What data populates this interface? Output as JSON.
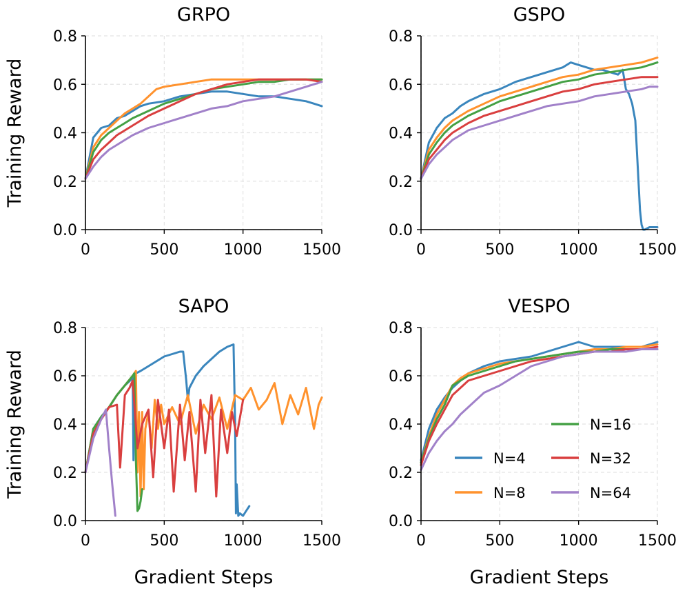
{
  "figure": {
    "xlabel": "Gradient Steps",
    "ylabel": "Training Reward"
  },
  "chart_data": [
    {
      "type": "line",
      "title": "GRPO",
      "xlabel": "",
      "ylabel": "Training Reward",
      "xlim": [
        0,
        1500
      ],
      "ylim": [
        0.0,
        0.8
      ],
      "xticks": [
        "0",
        "500",
        "1000",
        "1500"
      ],
      "yticks": [
        "0.0",
        "0.2",
        "0.4",
        "0.6",
        "0.8"
      ],
      "grid": true,
      "series": [
        {
          "name": "N=4",
          "color": "#3a86bd",
          "x": [
            0,
            50,
            100,
            150,
            200,
            250,
            300,
            350,
            400,
            500,
            600,
            700,
            800,
            900,
            1000,
            1100,
            1200,
            1300,
            1400,
            1450,
            1500
          ],
          "y": [
            0.21,
            0.38,
            0.42,
            0.43,
            0.46,
            0.47,
            0.49,
            0.51,
            0.52,
            0.53,
            0.55,
            0.56,
            0.57,
            0.57,
            0.56,
            0.55,
            0.55,
            0.54,
            0.53,
            0.52,
            0.51
          ]
        },
        {
          "name": "N=8",
          "color": "#ff922d",
          "x": [
            0,
            50,
            100,
            150,
            200,
            250,
            300,
            350,
            400,
            450,
            500,
            600,
            700,
            800,
            900,
            1000,
            1100,
            1200,
            1300,
            1400,
            1500
          ],
          "y": [
            0.21,
            0.34,
            0.39,
            0.42,
            0.45,
            0.48,
            0.5,
            0.52,
            0.55,
            0.58,
            0.59,
            0.6,
            0.61,
            0.62,
            0.62,
            0.62,
            0.62,
            0.62,
            0.62,
            0.62,
            0.62
          ]
        },
        {
          "name": "N=16",
          "color": "#44a044",
          "x": [
            0,
            50,
            100,
            150,
            200,
            250,
            300,
            400,
            500,
            600,
            700,
            800,
            900,
            1000,
            1100,
            1200,
            1300,
            1400,
            1500
          ],
          "y": [
            0.21,
            0.32,
            0.37,
            0.4,
            0.42,
            0.44,
            0.46,
            0.49,
            0.52,
            0.54,
            0.56,
            0.58,
            0.59,
            0.6,
            0.61,
            0.61,
            0.62,
            0.62,
            0.62
          ]
        },
        {
          "name": "N=32",
          "color": "#d93f3f",
          "x": [
            0,
            50,
            100,
            150,
            200,
            250,
            300,
            400,
            500,
            600,
            700,
            800,
            900,
            1000,
            1100,
            1200,
            1300,
            1400,
            1500
          ],
          "y": [
            0.21,
            0.29,
            0.33,
            0.36,
            0.39,
            0.41,
            0.43,
            0.47,
            0.5,
            0.53,
            0.56,
            0.58,
            0.6,
            0.61,
            0.62,
            0.62,
            0.62,
            0.62,
            0.61
          ]
        },
        {
          "name": "N=64",
          "color": "#a181c9",
          "x": [
            0,
            50,
            100,
            150,
            200,
            250,
            300,
            400,
            500,
            600,
            700,
            800,
            900,
            1000,
            1100,
            1200,
            1300,
            1400,
            1500
          ],
          "y": [
            0.21,
            0.26,
            0.3,
            0.33,
            0.35,
            0.37,
            0.39,
            0.42,
            0.44,
            0.46,
            0.48,
            0.5,
            0.51,
            0.53,
            0.54,
            0.55,
            0.57,
            0.59,
            0.61
          ]
        }
      ]
    },
    {
      "type": "line",
      "title": "GSPO",
      "xlabel": "",
      "ylabel": "",
      "xlim": [
        0,
        1500
      ],
      "ylim": [
        0.0,
        0.8
      ],
      "xticks": [
        "0",
        "500",
        "1000",
        "1500"
      ],
      "yticks": [
        "0.0",
        "0.2",
        "0.4",
        "0.6",
        "0.8"
      ],
      "grid": true,
      "series": [
        {
          "name": "N=4",
          "color": "#3a86bd",
          "x": [
            0,
            50,
            100,
            150,
            200,
            250,
            300,
            400,
            500,
            600,
            700,
            800,
            900,
            950,
            1000,
            1050,
            1100,
            1150,
            1200,
            1250,
            1280,
            1300,
            1320,
            1340,
            1360,
            1380,
            1390,
            1400,
            1410,
            1420,
            1450,
            1480,
            1500
          ],
          "y": [
            0.21,
            0.36,
            0.42,
            0.46,
            0.48,
            0.51,
            0.53,
            0.56,
            0.58,
            0.61,
            0.63,
            0.65,
            0.67,
            0.69,
            0.68,
            0.67,
            0.66,
            0.66,
            0.65,
            0.64,
            0.66,
            0.58,
            0.56,
            0.52,
            0.45,
            0.2,
            0.08,
            0.02,
            0.0,
            0.0,
            0.01,
            0.01,
            0.01
          ]
        },
        {
          "name": "N=8",
          "color": "#ff922d",
          "x": [
            0,
            50,
            100,
            150,
            200,
            300,
            400,
            500,
            600,
            700,
            800,
            900,
            1000,
            1100,
            1200,
            1300,
            1400,
            1450,
            1500
          ],
          "y": [
            0.21,
            0.33,
            0.38,
            0.42,
            0.45,
            0.49,
            0.52,
            0.55,
            0.57,
            0.59,
            0.61,
            0.63,
            0.64,
            0.66,
            0.67,
            0.68,
            0.69,
            0.7,
            0.71
          ]
        },
        {
          "name": "N=16",
          "color": "#44a044",
          "x": [
            0,
            50,
            100,
            150,
            200,
            300,
            400,
            500,
            600,
            700,
            800,
            900,
            1000,
            1100,
            1200,
            1300,
            1400,
            1450,
            1500
          ],
          "y": [
            0.21,
            0.31,
            0.36,
            0.4,
            0.43,
            0.47,
            0.5,
            0.53,
            0.55,
            0.57,
            0.59,
            0.61,
            0.62,
            0.64,
            0.65,
            0.66,
            0.67,
            0.68,
            0.69
          ]
        },
        {
          "name": "N=32",
          "color": "#d93f3f",
          "x": [
            0,
            50,
            100,
            150,
            200,
            300,
            400,
            500,
            600,
            700,
            800,
            900,
            1000,
            1100,
            1200,
            1300,
            1400,
            1450,
            1500
          ],
          "y": [
            0.21,
            0.29,
            0.33,
            0.37,
            0.4,
            0.44,
            0.47,
            0.49,
            0.51,
            0.53,
            0.55,
            0.57,
            0.58,
            0.6,
            0.61,
            0.62,
            0.63,
            0.63,
            0.63
          ]
        },
        {
          "name": "N=64",
          "color": "#a181c9",
          "x": [
            0,
            50,
            100,
            150,
            200,
            300,
            400,
            500,
            600,
            700,
            800,
            900,
            1000,
            1100,
            1200,
            1300,
            1400,
            1450,
            1500
          ],
          "y": [
            0.21,
            0.27,
            0.31,
            0.34,
            0.37,
            0.41,
            0.43,
            0.45,
            0.47,
            0.49,
            0.51,
            0.52,
            0.53,
            0.55,
            0.56,
            0.57,
            0.58,
            0.59,
            0.59
          ]
        }
      ]
    },
    {
      "type": "line",
      "title": "SAPO",
      "xlabel": "Gradient Steps",
      "ylabel": "Training Reward",
      "xlim": [
        0,
        1500
      ],
      "ylim": [
        0.0,
        0.8
      ],
      "xticks": [
        "0",
        "500",
        "1000",
        "1500"
      ],
      "yticks": [
        "0.0",
        "0.2",
        "0.4",
        "0.6",
        "0.8"
      ],
      "grid": true,
      "series": [
        {
          "name": "N=4",
          "color": "#3a86bd",
          "x": [
            0,
            50,
            100,
            150,
            200,
            250,
            300,
            305,
            310,
            320,
            350,
            400,
            450,
            500,
            550,
            600,
            620,
            640,
            650,
            660,
            700,
            750,
            800,
            850,
            900,
            940,
            950,
            955,
            960,
            970,
            980,
            1000,
            1020,
            1040
          ],
          "y": [
            0.2,
            0.38,
            0.43,
            0.47,
            0.52,
            0.56,
            0.59,
            0.25,
            0.6,
            0.61,
            0.62,
            0.64,
            0.66,
            0.68,
            0.69,
            0.7,
            0.7,
            0.58,
            0.5,
            0.55,
            0.6,
            0.64,
            0.67,
            0.7,
            0.72,
            0.73,
            0.4,
            0.03,
            0.15,
            0.02,
            0.03,
            0.02,
            0.04,
            0.06
          ]
        },
        {
          "name": "N=8",
          "color": "#ff922d",
          "x": [
            0,
            50,
            100,
            150,
            200,
            250,
            300,
            320,
            330,
            340,
            350,
            360,
            370,
            380,
            400,
            420,
            440,
            460,
            480,
            500,
            550,
            600,
            650,
            700,
            750,
            800,
            850,
            900,
            950,
            1000,
            1050,
            1100,
            1150,
            1200,
            1250,
            1300,
            1350,
            1400,
            1450,
            1480,
            1500
          ],
          "y": [
            0.2,
            0.38,
            0.42,
            0.47,
            0.52,
            0.56,
            0.6,
            0.62,
            0.2,
            0.45,
            0.1,
            0.45,
            0.13,
            0.38,
            0.45,
            0.3,
            0.5,
            0.38,
            0.48,
            0.4,
            0.47,
            0.4,
            0.52,
            0.36,
            0.48,
            0.42,
            0.51,
            0.38,
            0.52,
            0.5,
            0.55,
            0.46,
            0.5,
            0.57,
            0.4,
            0.52,
            0.44,
            0.55,
            0.38,
            0.48,
            0.51
          ]
        },
        {
          "name": "N=16",
          "color": "#44a044",
          "x": [
            0,
            50,
            100,
            150,
            200,
            250,
            300,
            310,
            320,
            330,
            340,
            350,
            360
          ],
          "y": [
            0.2,
            0.38,
            0.43,
            0.47,
            0.52,
            0.56,
            0.6,
            0.61,
            0.25,
            0.04,
            0.05,
            0.08,
            0.13
          ]
        },
        {
          "name": "N=32",
          "color": "#d93f3f",
          "x": [
            0,
            50,
            100,
            150,
            200,
            220,
            250,
            280,
            300,
            330,
            360,
            400,
            430,
            460,
            500,
            530,
            560,
            600,
            630,
            660,
            700,
            730,
            760,
            800,
            830,
            860,
            900,
            930,
            960,
            1000
          ],
          "y": [
            0.2,
            0.36,
            0.42,
            0.47,
            0.48,
            0.22,
            0.52,
            0.55,
            0.58,
            0.3,
            0.4,
            0.46,
            0.18,
            0.5,
            0.3,
            0.46,
            0.12,
            0.48,
            0.25,
            0.45,
            0.12,
            0.5,
            0.28,
            0.52,
            0.1,
            0.46,
            0.28,
            0.45,
            0.35,
            0.5
          ]
        },
        {
          "name": "N=64",
          "color": "#a181c9",
          "x": [
            0,
            50,
            100,
            130,
            150,
            170,
            190
          ],
          "y": [
            0.2,
            0.34,
            0.42,
            0.46,
            0.3,
            0.15,
            0.02
          ]
        }
      ]
    },
    {
      "type": "line",
      "title": "VESPO",
      "xlabel": "Gradient Steps",
      "ylabel": "",
      "xlim": [
        0,
        1500
      ],
      "ylim": [
        0.0,
        0.8
      ],
      "xticks": [
        "0",
        "500",
        "1000",
        "1500"
      ],
      "yticks": [
        "0.0",
        "0.2",
        "0.4",
        "0.6",
        "0.8"
      ],
      "grid": true,
      "legend": {
        "placement": "lower-right",
        "ncol": 2
      },
      "series": [
        {
          "name": "N=4",
          "color": "#3a86bd",
          "x": [
            0,
            50,
            100,
            150,
            200,
            250,
            300,
            400,
            500,
            600,
            700,
            800,
            900,
            1000,
            1050,
            1100,
            1200,
            1300,
            1400,
            1450,
            1500
          ],
          "y": [
            0.25,
            0.38,
            0.46,
            0.51,
            0.55,
            0.58,
            0.61,
            0.64,
            0.66,
            0.67,
            0.68,
            0.7,
            0.72,
            0.74,
            0.73,
            0.72,
            0.72,
            0.72,
            0.72,
            0.73,
            0.74
          ]
        },
        {
          "name": "N=8",
          "color": "#ff922d",
          "x": [
            0,
            50,
            100,
            150,
            200,
            250,
            300,
            400,
            500,
            600,
            700,
            800,
            900,
            1000,
            1100,
            1200,
            1300,
            1400,
            1500
          ],
          "y": [
            0.24,
            0.35,
            0.44,
            0.5,
            0.56,
            0.59,
            0.61,
            0.63,
            0.65,
            0.66,
            0.67,
            0.68,
            0.69,
            0.7,
            0.71,
            0.71,
            0.72,
            0.72,
            0.73
          ]
        },
        {
          "name": "N=16",
          "color": "#44a044",
          "x": [
            0,
            50,
            100,
            150,
            200,
            250,
            300,
            400,
            500,
            600,
            700,
            800,
            900,
            1000,
            1100,
            1200,
            1300,
            1400,
            1500
          ],
          "y": [
            0.24,
            0.34,
            0.42,
            0.48,
            0.56,
            0.58,
            0.6,
            0.62,
            0.64,
            0.66,
            0.67,
            0.68,
            0.69,
            0.7,
            0.7,
            0.71,
            0.71,
            0.71,
            0.71
          ]
        },
        {
          "name": "N=32",
          "color": "#d93f3f",
          "x": [
            0,
            50,
            100,
            150,
            200,
            250,
            300,
            400,
            500,
            600,
            700,
            800,
            900,
            1000,
            1100,
            1200,
            1300,
            1400,
            1500
          ],
          "y": [
            0.23,
            0.33,
            0.4,
            0.46,
            0.52,
            0.55,
            0.58,
            0.6,
            0.62,
            0.64,
            0.66,
            0.67,
            0.68,
            0.69,
            0.7,
            0.7,
            0.71,
            0.71,
            0.72
          ]
        },
        {
          "name": "N=64",
          "color": "#a181c9",
          "x": [
            0,
            50,
            100,
            150,
            200,
            250,
            300,
            350,
            400,
            500,
            600,
            700,
            800,
            900,
            1000,
            1100,
            1200,
            1300,
            1400,
            1500
          ],
          "y": [
            0.21,
            0.28,
            0.33,
            0.37,
            0.4,
            0.44,
            0.47,
            0.5,
            0.53,
            0.56,
            0.6,
            0.64,
            0.66,
            0.68,
            0.69,
            0.7,
            0.7,
            0.7,
            0.71,
            0.71
          ]
        }
      ]
    }
  ]
}
